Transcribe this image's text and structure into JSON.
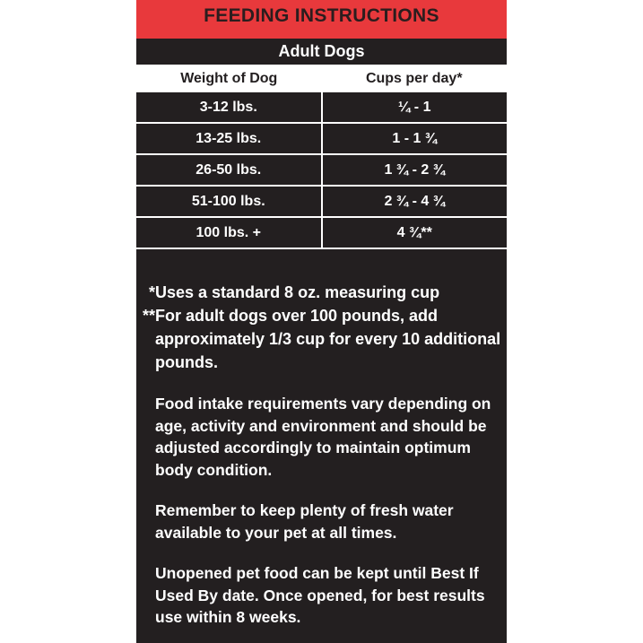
{
  "title": "FEEDING INSTRUCTIONS",
  "subtitle": "Adult Dogs",
  "table": {
    "headers": [
      "Weight of Dog",
      "Cups per day*"
    ],
    "rows": [
      [
        "3-12 lbs.",
        "¼ - 1"
      ],
      [
        "13-25 lbs.",
        "1 - 1 ¾"
      ],
      [
        "26-50 lbs.",
        "1 ¾ - 2 ¾"
      ],
      [
        "51-100 lbs.",
        "2 ¾ - 4 ¾"
      ],
      [
        "100 lbs. +",
        "4 ¾**"
      ]
    ]
  },
  "notes": {
    "star1_mark": "*",
    "star1": "Uses a standard 8 oz. measuring cup",
    "star2_mark": "**",
    "star2": "For adult dogs over 100 pounds, add approximately 1/3 cup for every 10 additional pounds.",
    "p1": "Food intake requirements vary depending on age, activity and environment and should be adjusted accordingly to maintain optimum body condition.",
    "p2": "Remember to keep plenty of fresh water available to your pet at all times.",
    "p3": "Unopened pet food can be kept until Best If Used By date. Once opened, for best results use within 8 weeks."
  },
  "colors": {
    "header_red": "#e8393c",
    "panel_dark": "#231f20"
  }
}
